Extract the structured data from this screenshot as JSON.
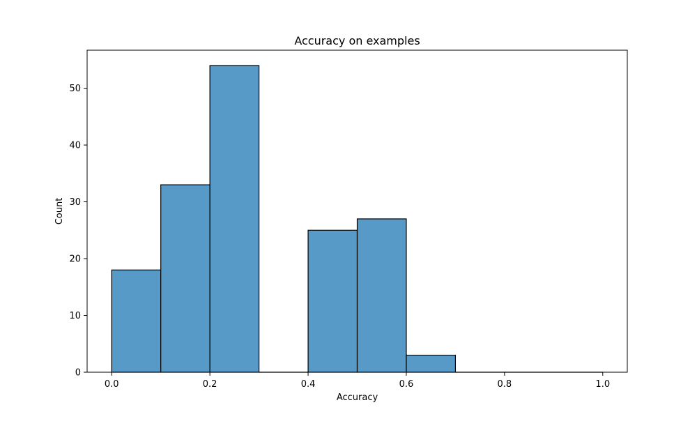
{
  "chart_data": {
    "type": "bar",
    "title": "Accuracy on examples",
    "xlabel": "Accuracy",
    "ylabel": "Count",
    "xlim": [
      -0.05,
      1.05
    ],
    "ylim": [
      0,
      56.7
    ],
    "grid": false,
    "bins": [
      {
        "start": 0.0,
        "end": 0.1,
        "count": 18
      },
      {
        "start": 0.1,
        "end": 0.2,
        "count": 33
      },
      {
        "start": 0.2,
        "end": 0.3,
        "count": 54
      },
      {
        "start": 0.3,
        "end": 0.4,
        "count": 0
      },
      {
        "start": 0.4,
        "end": 0.5,
        "count": 25
      },
      {
        "start": 0.5,
        "end": 0.6,
        "count": 27
      },
      {
        "start": 0.6,
        "end": 0.7,
        "count": 3
      },
      {
        "start": 0.7,
        "end": 0.8,
        "count": 0
      },
      {
        "start": 0.8,
        "end": 0.9,
        "count": 0
      },
      {
        "start": 0.9,
        "end": 1.0,
        "count": 0
      }
    ],
    "x_ticks": [
      {
        "value": 0.0,
        "label": "0.0"
      },
      {
        "value": 0.2,
        "label": "0.2"
      },
      {
        "value": 0.4,
        "label": "0.4"
      },
      {
        "value": 0.6,
        "label": "0.6"
      },
      {
        "value": 0.8,
        "label": "0.8"
      },
      {
        "value": 1.0,
        "label": "1.0"
      }
    ],
    "y_ticks": [
      {
        "value": 0,
        "label": "0"
      },
      {
        "value": 10,
        "label": "10"
      },
      {
        "value": 20,
        "label": "20"
      },
      {
        "value": 30,
        "label": "30"
      },
      {
        "value": 40,
        "label": "40"
      },
      {
        "value": 50,
        "label": "50"
      }
    ],
    "colors": {
      "bar_fill": "#5799c7",
      "bar_edge": "#000000",
      "axis": "#000000"
    }
  }
}
